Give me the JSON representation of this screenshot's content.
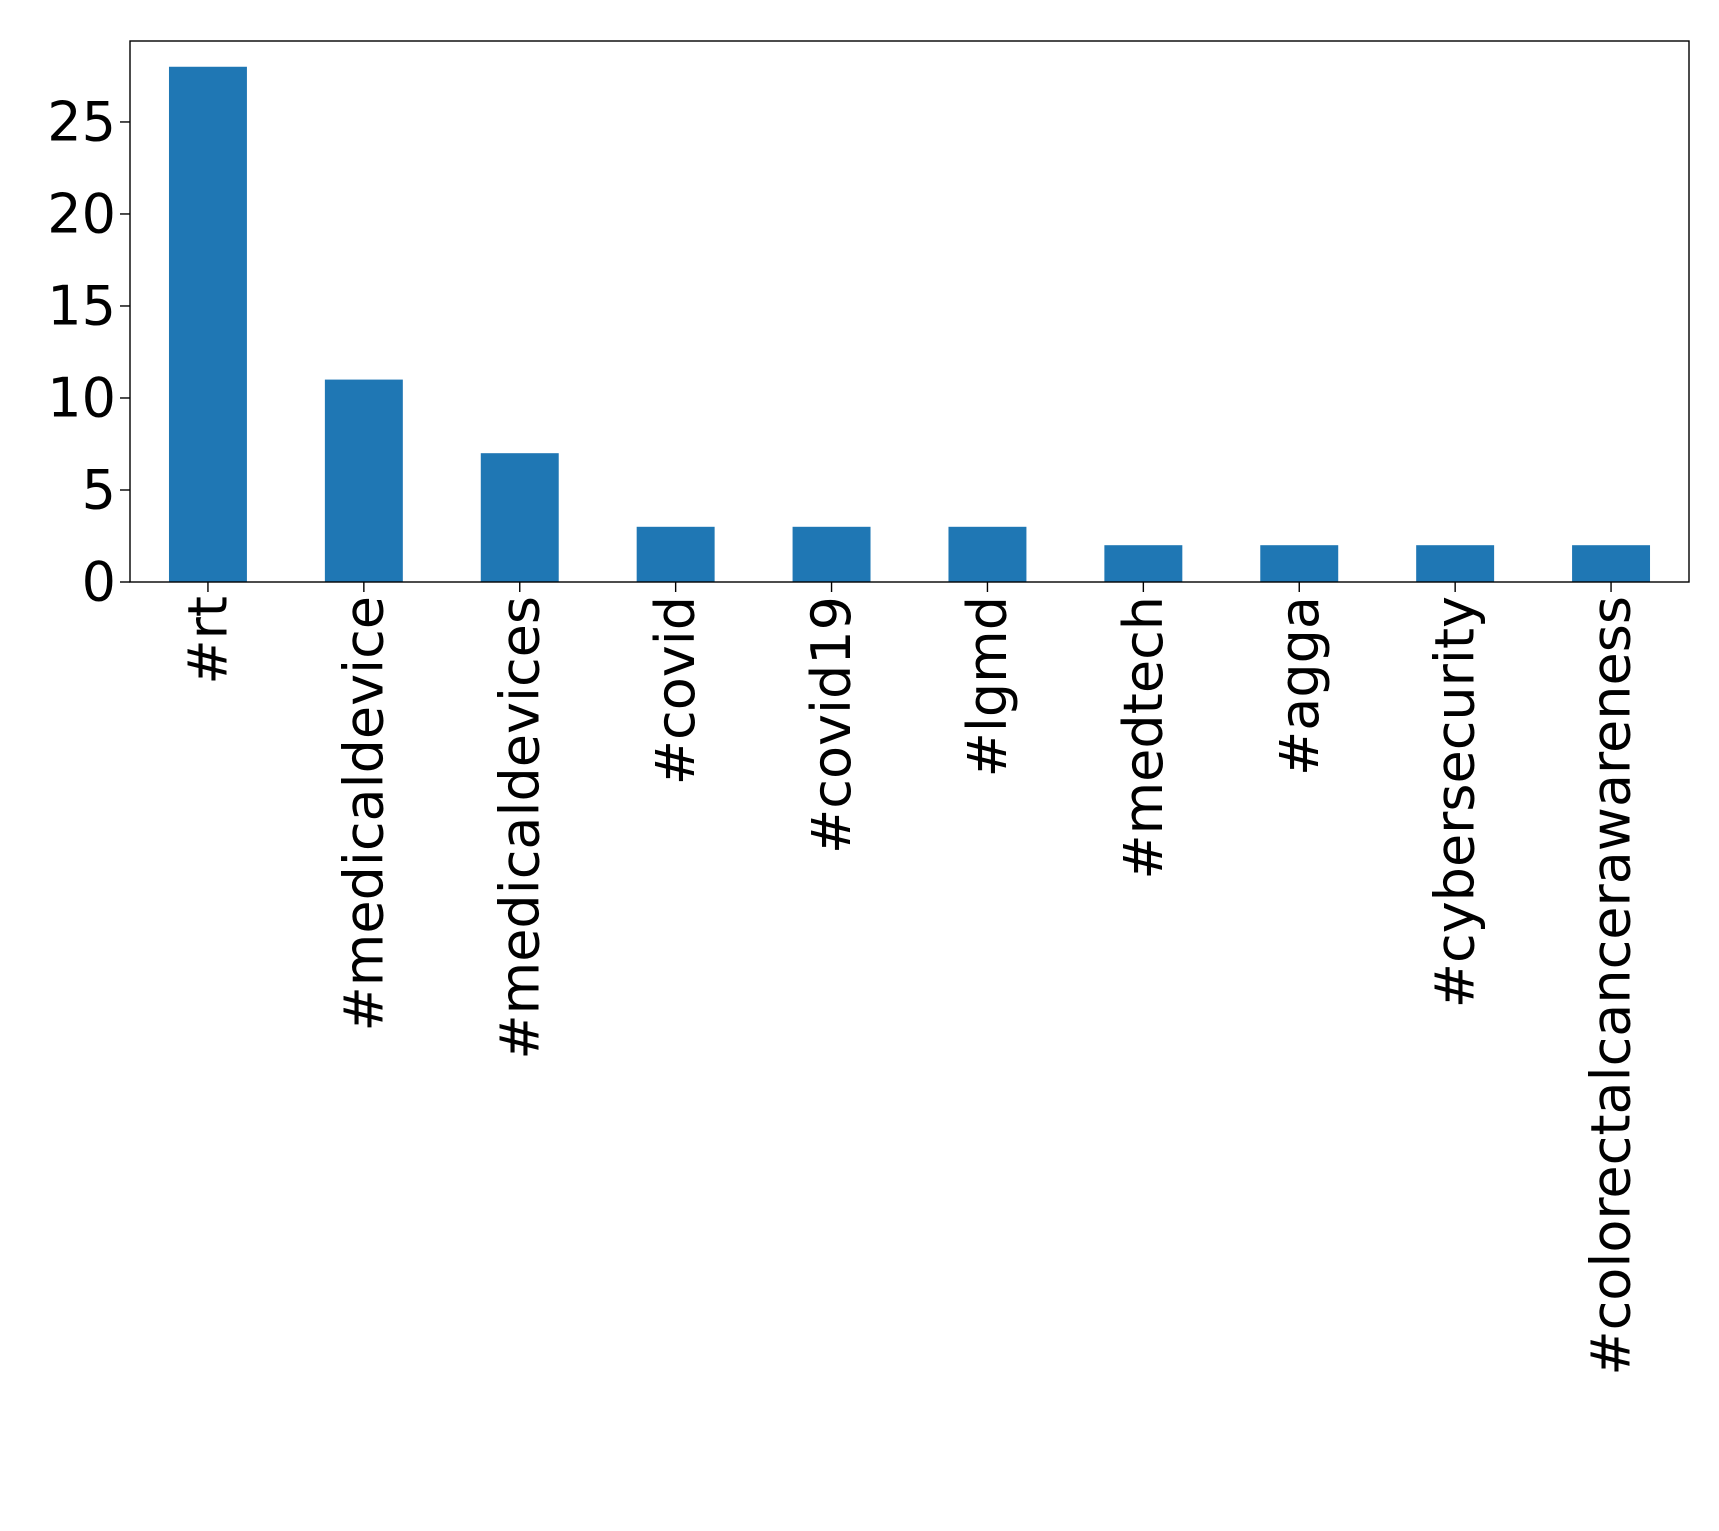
{
  "chart_data": {
    "type": "bar",
    "title": "",
    "xlabel": "",
    "ylabel": "",
    "categories": [
      "#rt",
      "#medicaldevice",
      "#medicaldevices",
      "#covid",
      "#covid19",
      "#lgmd",
      "#medtech",
      "#agga",
      "#cybersecurity",
      "#colorectalcancerawareness"
    ],
    "values": [
      28,
      11,
      7,
      3,
      3,
      3,
      2,
      2,
      2,
      2
    ],
    "ylim": [
      0,
      29.4
    ],
    "yticks": [
      0,
      5,
      10,
      15,
      20,
      25
    ],
    "grid": false,
    "legend": "none",
    "bar_color": "#1f77b4"
  }
}
